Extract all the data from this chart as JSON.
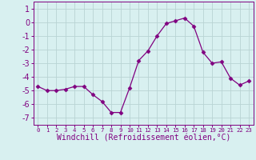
{
  "x": [
    0,
    1,
    2,
    3,
    4,
    5,
    6,
    7,
    8,
    9,
    10,
    11,
    12,
    13,
    14,
    15,
    16,
    17,
    18,
    19,
    20,
    21,
    22,
    23
  ],
  "y": [
    -4.7,
    -5.0,
    -5.0,
    -4.9,
    -4.7,
    -4.7,
    -5.3,
    -5.8,
    -6.6,
    -6.6,
    -4.8,
    -2.8,
    -2.1,
    -1.0,
    -0.1,
    0.1,
    0.3,
    -0.3,
    -2.2,
    -3.0,
    -2.9,
    -4.1,
    -4.6,
    -4.3
  ],
  "line_color": "#800080",
  "marker": "D",
  "marker_size": 2.5,
  "bg_color": "#d8f0f0",
  "grid_color": "#b8d4d4",
  "xlabel": "Windchill (Refroidissement éolien,°C)",
  "xlabel_fontsize": 7,
  "tick_fontsize": 7,
  "ylim": [
    -7.5,
    1.5
  ],
  "xlim": [
    -0.5,
    23.5
  ],
  "yticks": [
    -7,
    -6,
    -5,
    -4,
    -3,
    -2,
    -1,
    0,
    1
  ],
  "xticks": [
    0,
    1,
    2,
    3,
    4,
    5,
    6,
    7,
    8,
    9,
    10,
    11,
    12,
    13,
    14,
    15,
    16,
    17,
    18,
    19,
    20,
    21,
    22,
    23
  ],
  "figsize": [
    3.2,
    2.0
  ],
  "dpi": 100
}
